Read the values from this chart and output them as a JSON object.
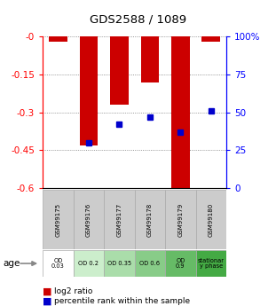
{
  "title": "GDS2588 / 1089",
  "samples": [
    "GSM99175",
    "GSM99176",
    "GSM99177",
    "GSM99178",
    "GSM99179",
    "GSM99180"
  ],
  "log2_ratio": [
    -0.02,
    -0.43,
    -0.27,
    -0.18,
    -0.6,
    -0.02
  ],
  "percentile_rank_pct": [
    null,
    30,
    42,
    47,
    37,
    51
  ],
  "ylim_left": [
    -0.6,
    0.0
  ],
  "ylim_right": [
    0,
    100
  ],
  "yticks_left": [
    0.0,
    -0.15,
    -0.3,
    -0.45,
    -0.6
  ],
  "ytick_left_labels": [
    "-0",
    "-0.15",
    "-0.3",
    "-0.45",
    "-0.6"
  ],
  "yticks_right": [
    0,
    25,
    50,
    75,
    100
  ],
  "ytick_right_labels": [
    "0",
    "25",
    "50",
    "75",
    "100%"
  ],
  "bar_color": "#cc0000",
  "dot_color": "#0000cc",
  "grid_color": "#777777",
  "sample_bg_color": "#cccccc",
  "age_labels": [
    "OD\n0.03",
    "OD 0.2",
    "OD 0.35",
    "OD 0.6",
    "OD\n0.9",
    "stationar\ny phase"
  ],
  "age_bg_colors": [
    "#ffffff",
    "#cceecc",
    "#aaddaa",
    "#88cc88",
    "#66bb66",
    "#44aa44"
  ],
  "legend_red": "log2 ratio",
  "legend_blue": "percentile rank within the sample"
}
